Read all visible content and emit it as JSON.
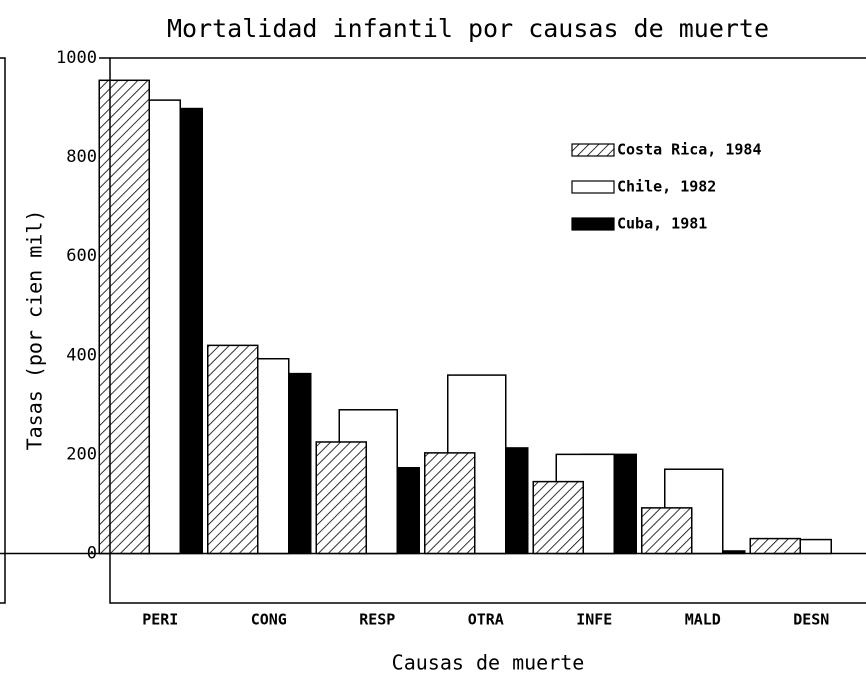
{
  "chart_data": {
    "type": "bar",
    "title": "Mortalidad infantil por causas de muerte",
    "xlabel": "Causas de muerte",
    "ylabel": "Tasas (por cien mil)",
    "categories": [
      "PERI",
      "CONG",
      "RESP",
      "OTRA",
      "INFE",
      "MALD",
      "DESN"
    ],
    "series": [
      {
        "name": "Costa Rica, 1984",
        "color": "#ffffff",
        "hatch": true,
        "values": [
          955,
          420,
          225,
          203,
          145,
          92,
          30
        ]
      },
      {
        "name": "Chile, 1982",
        "color": "#ffffff",
        "hatch": false,
        "values": [
          915,
          393,
          290,
          360,
          200,
          170,
          28
        ]
      },
      {
        "name": "Cuba, 1981",
        "color": "#000000",
        "hatch": false,
        "values": [
          898,
          363,
          173,
          213,
          200,
          5,
          0
        ]
      }
    ],
    "ylim": [
      -100,
      1000
    ],
    "yticks": [
      0,
      200,
      400,
      600,
      800,
      1000
    ],
    "legend": "upper right"
  }
}
